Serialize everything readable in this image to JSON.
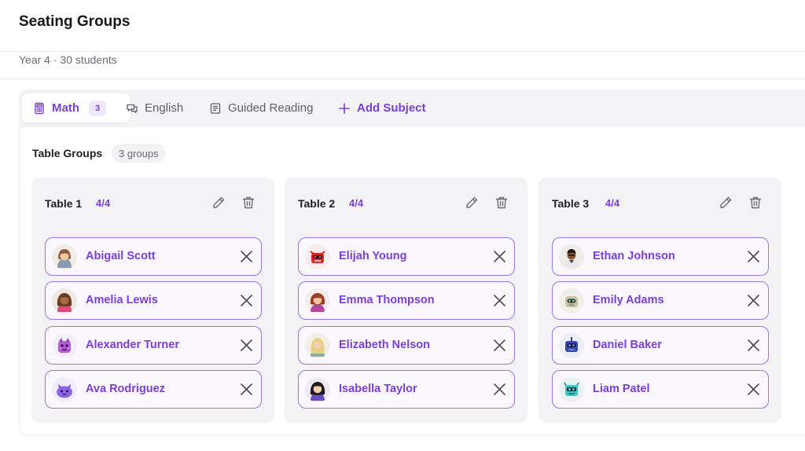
{
  "page": {
    "title": "Seating Groups",
    "subtitle": "Year 4 · 30 students"
  },
  "tabs": [
    {
      "label": "Math",
      "badge": "3",
      "icon": "calculator-icon",
      "active": true
    },
    {
      "label": "English",
      "icon": "chat-bubbles-icon"
    },
    {
      "label": "Guided Reading",
      "icon": "document-icon"
    },
    {
      "label": "Add Subject",
      "icon": "plus-icon"
    }
  ],
  "groups": {
    "heading": "Table Groups",
    "count_label": "3 groups"
  },
  "tables": [
    {
      "title": "Table 1",
      "capacity": "4/4",
      "students": [
        {
          "name": "Abigail Scott",
          "avatar": "avatar-girl-brown-hair"
        },
        {
          "name": "Amelia Lewis",
          "avatar": "avatar-girl-dark-skin"
        },
        {
          "name": "Alexander Turner",
          "avatar": "avatar-purple-monster"
        },
        {
          "name": "Ava Rodriguez",
          "avatar": "avatar-purple-blob"
        }
      ]
    },
    {
      "title": "Table 2",
      "capacity": "4/4",
      "students": [
        {
          "name": "Elijah Young",
          "avatar": "avatar-red-robot"
        },
        {
          "name": "Emma Thompson",
          "avatar": "avatar-girl-red-hair"
        },
        {
          "name": "Elizabeth Nelson",
          "avatar": "avatar-girl-blonde"
        },
        {
          "name": "Isabella Taylor",
          "avatar": "avatar-girl-black-hair"
        }
      ]
    },
    {
      "title": "Table 3",
      "capacity": "4/4",
      "students": [
        {
          "name": "Ethan Johnson",
          "avatar": "avatar-boy-dark-skin"
        },
        {
          "name": "Emily Adams",
          "avatar": "avatar-beige-robot"
        },
        {
          "name": "Daniel Baker",
          "avatar": "avatar-blue-robot"
        },
        {
          "name": "Liam Patel",
          "avatar": "avatar-teal-robot"
        }
      ]
    }
  ],
  "colors": {
    "accent": "#7b3fd4",
    "chip_border": "#9f73e0",
    "card_bg": "#f3f3f6"
  }
}
